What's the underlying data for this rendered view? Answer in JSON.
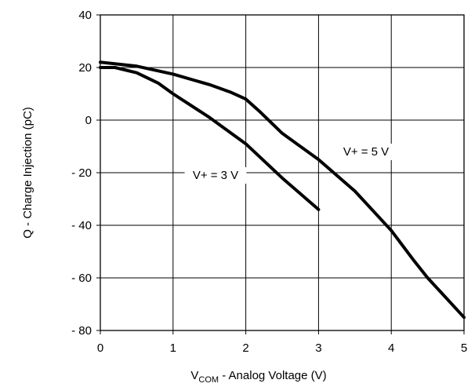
{
  "chart_data": {
    "type": "line",
    "title": "",
    "xlabel_main": "V",
    "xlabel_sub": "COM",
    "xlabel_rest": " - Analog Voltage (V)",
    "ylabel": "Q - Charge Injection (pC)",
    "xlim": [
      0,
      5
    ],
    "ylim": [
      -80,
      40
    ],
    "x_ticks": [
      0,
      1,
      2,
      3,
      4,
      5
    ],
    "x_tick_labels": [
      "0",
      "1",
      "2",
      "3",
      "4",
      "5"
    ],
    "y_ticks": [
      40,
      20,
      0,
      -20,
      -40,
      -60,
      -80
    ],
    "y_tick_labels": [
      "40",
      "20",
      "0",
      "- 20",
      "- 40",
      "- 60",
      "- 80"
    ],
    "grid": true,
    "line_color": "#000000",
    "series": [
      {
        "name": "V+ = 5 V",
        "x": [
          0,
          0.5,
          1.0,
          1.5,
          1.8,
          2.0,
          2.2,
          2.5,
          3.0,
          3.5,
          4.0,
          4.3,
          4.5,
          4.7,
          5.0
        ],
        "y": [
          22,
          20.5,
          17.5,
          13.5,
          10.5,
          8,
          3,
          -5,
          -15,
          -27,
          -42,
          -53,
          -60,
          -66,
          -75
        ]
      },
      {
        "name": "V+ = 3 V",
        "x": [
          0,
          0.2,
          0.5,
          0.8,
          1.0,
          1.5,
          2.0,
          2.5,
          3.0
        ],
        "y": [
          20,
          20,
          18,
          14,
          10,
          1,
          -9,
          -22,
          -34
        ]
      }
    ],
    "annotations": [
      {
        "text": "V+ = 5 V",
        "series_index": 0
      },
      {
        "text": "V+ = 3 V",
        "series_index": 1
      }
    ]
  }
}
